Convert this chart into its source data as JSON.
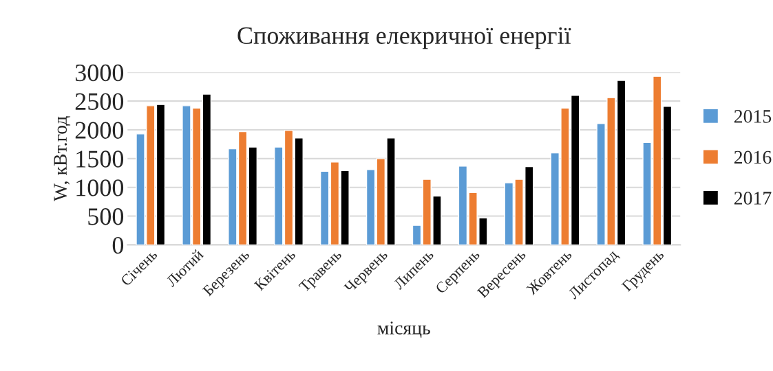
{
  "chart_data": {
    "type": "bar",
    "title": "Споживання елекричної енергії",
    "xlabel": "місяць",
    "ylabel": "W, кВт.год",
    "categories": [
      "Січень",
      "Лютий",
      "Березень",
      "Квітень",
      "Травень",
      "Червень",
      "Липень",
      "Серпень",
      "Вересень",
      "Жовтень",
      "Листопад",
      "Грудень"
    ],
    "series": [
      {
        "name": "2015",
        "color": "#5b9bd5",
        "values": [
          1930,
          2420,
          1670,
          1700,
          1280,
          1310,
          340,
          1370,
          1080,
          1600,
          2110,
          1780
        ]
      },
      {
        "name": "2016",
        "color": "#ed7d31",
        "values": [
          2420,
          2380,
          1970,
          1990,
          1440,
          1500,
          1140,
          910,
          1140,
          2380,
          2560,
          2930
        ]
      },
      {
        "name": "2017",
        "color": "#000000",
        "values": [
          2440,
          2620,
          1700,
          1860,
          1290,
          1860,
          850,
          470,
          1360,
          2600,
          2860,
          2410
        ]
      }
    ],
    "ylim": [
      0,
      3000
    ],
    "yticks": [
      0,
      500,
      1000,
      1500,
      2000,
      2500,
      3000
    ],
    "grid": "y",
    "legend": "right"
  }
}
